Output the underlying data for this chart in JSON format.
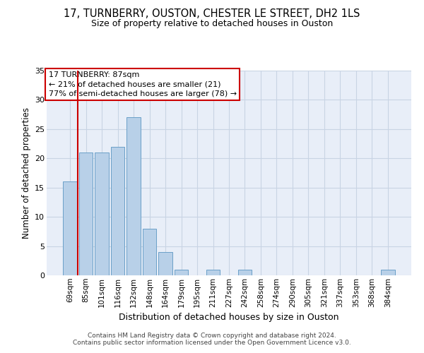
{
  "title_line1": "17, TURNBERRY, OUSTON, CHESTER LE STREET, DH2 1LS",
  "title_line2": "Size of property relative to detached houses in Ouston",
  "xlabel": "Distribution of detached houses by size in Ouston",
  "ylabel": "Number of detached properties",
  "categories": [
    "69sqm",
    "85sqm",
    "101sqm",
    "116sqm",
    "132sqm",
    "148sqm",
    "164sqm",
    "179sqm",
    "195sqm",
    "211sqm",
    "227sqm",
    "242sqm",
    "258sqm",
    "274sqm",
    "290sqm",
    "305sqm",
    "321sqm",
    "337sqm",
    "353sqm",
    "368sqm",
    "384sqm"
  ],
  "values": [
    16,
    21,
    21,
    22,
    27,
    8,
    4,
    1,
    0,
    1,
    0,
    1,
    0,
    0,
    0,
    0,
    0,
    0,
    0,
    0,
    1
  ],
  "bar_color": "#b8d0e8",
  "bar_edge_color": "#6aa0c8",
  "grid_color": "#c8d4e4",
  "background_color": "#e8eef8",
  "vline_color": "#cc0000",
  "vline_x_index": 1,
  "annotation_text": "17 TURNBERRY: 87sqm\n← 21% of detached houses are smaller (21)\n77% of semi-detached houses are larger (78) →",
  "annotation_box_color": "white",
  "annotation_box_edge": "#cc0000",
  "ylim": [
    0,
    35
  ],
  "yticks": [
    0,
    5,
    10,
    15,
    20,
    25,
    30,
    35
  ],
  "title_fontsize": 10.5,
  "subtitle_fontsize": 9,
  "footnote": "Contains HM Land Registry data © Crown copyright and database right 2024.\nContains public sector information licensed under the Open Government Licence v3.0.",
  "footnote_fontsize": 6.5
}
